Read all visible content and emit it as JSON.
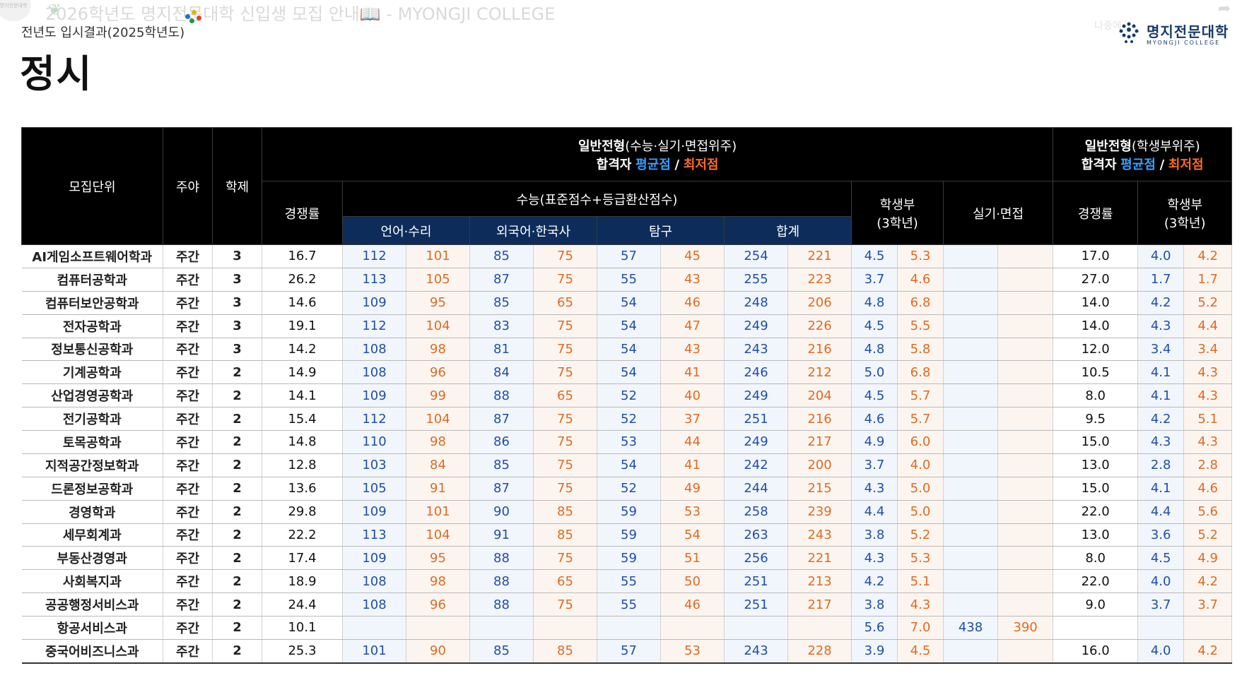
{
  "video_overlay": {
    "title": "2026학년도 명지전문대학 신입생 모집 안내📖 - MYONGJI COLLEGE",
    "corner_text": "명지전문대학",
    "faded_right": "나중에"
  },
  "slide": {
    "subtitle": "전년도 입시결과(2025학년도)",
    "heading": "정시",
    "brand_ko": "명지전문대학",
    "brand_en": "MYONGJI COLLEGE"
  },
  "header": {
    "unit": "모집단위",
    "day_night": "주야",
    "years": "학제",
    "general_csat": "일반전형",
    "general_csat_suffix": "(수능·실기·면접위주)",
    "general_record": "일반전형",
    "general_record_suffix": "(학생부위주)",
    "passer": "합격자",
    "avg": "평균점",
    "slash": "/",
    "min": "최저점",
    "rate": "경쟁률",
    "csat": "수능(표준점수+등급환산점수)",
    "record": "학생부",
    "record_sub": "(3학년)",
    "practical": "실기·면접",
    "rate2": "경쟁률",
    "record2": "학생부",
    "record2_sub": "(3학년)",
    "lang_math": "언어·수리",
    "foreign_history": "외국어·한국사",
    "inquiry": "탐구",
    "total": "합계"
  },
  "colors": {
    "avg": "#3aa0ff",
    "min": "#ff6a2a",
    "avg_cell": "#1f4fa8",
    "min_cell": "#e06a22",
    "header_bg": "#000000",
    "subheader_bg": "#0d2c5a"
  },
  "rows": [
    {
      "name": "AI게임소프트웨어학과",
      "dn": "주간",
      "yrs": "3",
      "rate": "16.7",
      "lm": [
        "112",
        "101"
      ],
      "fh": [
        "85",
        "75"
      ],
      "inq": [
        "57",
        "45"
      ],
      "tot": [
        "254",
        "221"
      ],
      "rec": [
        "4.5",
        "5.3"
      ],
      "prac": [
        "",
        ""
      ],
      "rate2": "17.0",
      "rec2": [
        "4.0",
        "4.2"
      ]
    },
    {
      "name": "컴퓨터공학과",
      "dn": "주간",
      "yrs": "3",
      "rate": "26.2",
      "lm": [
        "113",
        "105"
      ],
      "fh": [
        "87",
        "75"
      ],
      "inq": [
        "55",
        "43"
      ],
      "tot": [
        "255",
        "223"
      ],
      "rec": [
        "3.7",
        "4.6"
      ],
      "prac": [
        "",
        ""
      ],
      "rate2": "27.0",
      "rec2": [
        "1.7",
        "1.7"
      ]
    },
    {
      "name": "컴퓨터보안공학과",
      "dn": "주간",
      "yrs": "3",
      "rate": "14.6",
      "lm": [
        "109",
        "95"
      ],
      "fh": [
        "85",
        "65"
      ],
      "inq": [
        "54",
        "46"
      ],
      "tot": [
        "248",
        "206"
      ],
      "rec": [
        "4.8",
        "6.8"
      ],
      "prac": [
        "",
        ""
      ],
      "rate2": "14.0",
      "rec2": [
        "4.2",
        "5.2"
      ]
    },
    {
      "name": "전자공학과",
      "dn": "주간",
      "yrs": "3",
      "rate": "19.1",
      "lm": [
        "112",
        "104"
      ],
      "fh": [
        "83",
        "75"
      ],
      "inq": [
        "54",
        "47"
      ],
      "tot": [
        "249",
        "226"
      ],
      "rec": [
        "4.5",
        "5.5"
      ],
      "prac": [
        "",
        ""
      ],
      "rate2": "14.0",
      "rec2": [
        "4.3",
        "4.4"
      ]
    },
    {
      "name": "정보통신공학과",
      "dn": "주간",
      "yrs": "3",
      "rate": "14.2",
      "lm": [
        "108",
        "98"
      ],
      "fh": [
        "81",
        "75"
      ],
      "inq": [
        "54",
        "43"
      ],
      "tot": [
        "243",
        "216"
      ],
      "rec": [
        "4.8",
        "5.8"
      ],
      "prac": [
        "",
        ""
      ],
      "rate2": "12.0",
      "rec2": [
        "3.4",
        "3.4"
      ]
    },
    {
      "name": "기계공학과",
      "dn": "주간",
      "yrs": "2",
      "rate": "14.9",
      "lm": [
        "108",
        "96"
      ],
      "fh": [
        "84",
        "75"
      ],
      "inq": [
        "54",
        "41"
      ],
      "tot": [
        "246",
        "212"
      ],
      "rec": [
        "5.0",
        "6.8"
      ],
      "prac": [
        "",
        ""
      ],
      "rate2": "10.5",
      "rec2": [
        "4.1",
        "4.3"
      ]
    },
    {
      "name": "산업경영공학과",
      "dn": "주간",
      "yrs": "2",
      "rate": "14.1",
      "lm": [
        "109",
        "99"
      ],
      "fh": [
        "88",
        "65"
      ],
      "inq": [
        "52",
        "40"
      ],
      "tot": [
        "249",
        "204"
      ],
      "rec": [
        "4.5",
        "5.7"
      ],
      "prac": [
        "",
        ""
      ],
      "rate2": "8.0",
      "rec2": [
        "4.1",
        "4.3"
      ]
    },
    {
      "name": "전기공학과",
      "dn": "주간",
      "yrs": "2",
      "rate": "15.4",
      "lm": [
        "112",
        "104"
      ],
      "fh": [
        "87",
        "75"
      ],
      "inq": [
        "52",
        "37"
      ],
      "tot": [
        "251",
        "216"
      ],
      "rec": [
        "4.6",
        "5.7"
      ],
      "prac": [
        "",
        ""
      ],
      "rate2": "9.5",
      "rec2": [
        "4.2",
        "5.1"
      ]
    },
    {
      "name": "토목공학과",
      "dn": "주간",
      "yrs": "2",
      "rate": "14.8",
      "lm": [
        "110",
        "98"
      ],
      "fh": [
        "86",
        "75"
      ],
      "inq": [
        "53",
        "44"
      ],
      "tot": [
        "249",
        "217"
      ],
      "rec": [
        "4.9",
        "6.0"
      ],
      "prac": [
        "",
        ""
      ],
      "rate2": "15.0",
      "rec2": [
        "4.3",
        "4.3"
      ]
    },
    {
      "name": "지적공간정보학과",
      "dn": "주간",
      "yrs": "2",
      "rate": "12.8",
      "lm": [
        "103",
        "84"
      ],
      "fh": [
        "85",
        "75"
      ],
      "inq": [
        "54",
        "41"
      ],
      "tot": [
        "242",
        "200"
      ],
      "rec": [
        "3.7",
        "4.0"
      ],
      "prac": [
        "",
        ""
      ],
      "rate2": "13.0",
      "rec2": [
        "2.8",
        "2.8"
      ]
    },
    {
      "name": "드론정보공학과",
      "dn": "주간",
      "yrs": "2",
      "rate": "13.6",
      "lm": [
        "105",
        "91"
      ],
      "fh": [
        "87",
        "75"
      ],
      "inq": [
        "52",
        "49"
      ],
      "tot": [
        "244",
        "215"
      ],
      "rec": [
        "4.3",
        "5.0"
      ],
      "prac": [
        "",
        ""
      ],
      "rate2": "15.0",
      "rec2": [
        "4.1",
        "4.6"
      ]
    },
    {
      "name": "경영학과",
      "dn": "주간",
      "yrs": "2",
      "rate": "29.8",
      "lm": [
        "109",
        "101"
      ],
      "fh": [
        "90",
        "85"
      ],
      "inq": [
        "59",
        "53"
      ],
      "tot": [
        "258",
        "239"
      ],
      "rec": [
        "4.4",
        "5.0"
      ],
      "prac": [
        "",
        ""
      ],
      "rate2": "22.0",
      "rec2": [
        "4.4",
        "5.6"
      ]
    },
    {
      "name": "세무회계과",
      "dn": "주간",
      "yrs": "2",
      "rate": "22.2",
      "lm": [
        "113",
        "104"
      ],
      "fh": [
        "91",
        "85"
      ],
      "inq": [
        "59",
        "54"
      ],
      "tot": [
        "263",
        "243"
      ],
      "rec": [
        "3.8",
        "5.2"
      ],
      "prac": [
        "",
        ""
      ],
      "rate2": "13.0",
      "rec2": [
        "3.6",
        "5.2"
      ]
    },
    {
      "name": "부동산경영과",
      "dn": "주간",
      "yrs": "2",
      "rate": "17.4",
      "lm": [
        "109",
        "95"
      ],
      "fh": [
        "88",
        "75"
      ],
      "inq": [
        "59",
        "51"
      ],
      "tot": [
        "256",
        "221"
      ],
      "rec": [
        "4.3",
        "5.3"
      ],
      "prac": [
        "",
        ""
      ],
      "rate2": "8.0",
      "rec2": [
        "4.5",
        "4.9"
      ]
    },
    {
      "name": "사회복지과",
      "dn": "주간",
      "yrs": "2",
      "rate": "18.9",
      "lm": [
        "108",
        "98"
      ],
      "fh": [
        "88",
        "65"
      ],
      "inq": [
        "55",
        "50"
      ],
      "tot": [
        "251",
        "213"
      ],
      "rec": [
        "4.2",
        "5.1"
      ],
      "prac": [
        "",
        ""
      ],
      "rate2": "22.0",
      "rec2": [
        "4.0",
        "4.2"
      ]
    },
    {
      "name": "공공행정서비스과",
      "dn": "주간",
      "yrs": "2",
      "rate": "24.4",
      "lm": [
        "108",
        "96"
      ],
      "fh": [
        "88",
        "75"
      ],
      "inq": [
        "55",
        "46"
      ],
      "tot": [
        "251",
        "217"
      ],
      "rec": [
        "3.8",
        "4.3"
      ],
      "prac": [
        "",
        ""
      ],
      "rate2": "9.0",
      "rec2": [
        "3.7",
        "3.7"
      ]
    },
    {
      "name": "항공서비스과",
      "dn": "주간",
      "yrs": "2",
      "rate": "10.1",
      "lm": [
        "",
        ""
      ],
      "fh": [
        "",
        ""
      ],
      "inq": [
        "",
        ""
      ],
      "tot": [
        "",
        ""
      ],
      "rec": [
        "5.6",
        "7.0"
      ],
      "prac": [
        "438",
        "390"
      ],
      "rate2": "",
      "rec2": [
        "",
        ""
      ]
    },
    {
      "name": "중국어비즈니스과",
      "dn": "주간",
      "yrs": "2",
      "rate": "25.3",
      "lm": [
        "101",
        "90"
      ],
      "fh": [
        "85",
        "85"
      ],
      "inq": [
        "57",
        "53"
      ],
      "tot": [
        "243",
        "228"
      ],
      "rec": [
        "3.9",
        "4.5"
      ],
      "prac": [
        "",
        ""
      ],
      "rate2": "16.0",
      "rec2": [
        "4.0",
        "4.2"
      ]
    }
  ]
}
